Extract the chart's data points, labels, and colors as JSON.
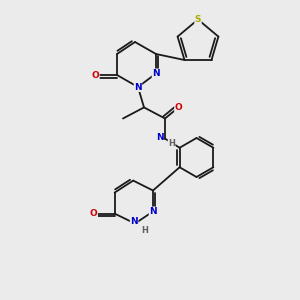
{
  "bg_color": "#ebebeb",
  "figsize": [
    3.0,
    3.0
  ],
  "dpi": 100,
  "bond_color": "#1a1a1a",
  "atom_colors": {
    "N": "#0000cc",
    "O": "#cc0000",
    "S": "#aaaa00",
    "H": "#606060"
  },
  "lw": 1.3,
  "fs": 6.5,
  "coords": {
    "xlim": [
      0,
      10
    ],
    "ylim": [
      0,
      10
    ]
  }
}
